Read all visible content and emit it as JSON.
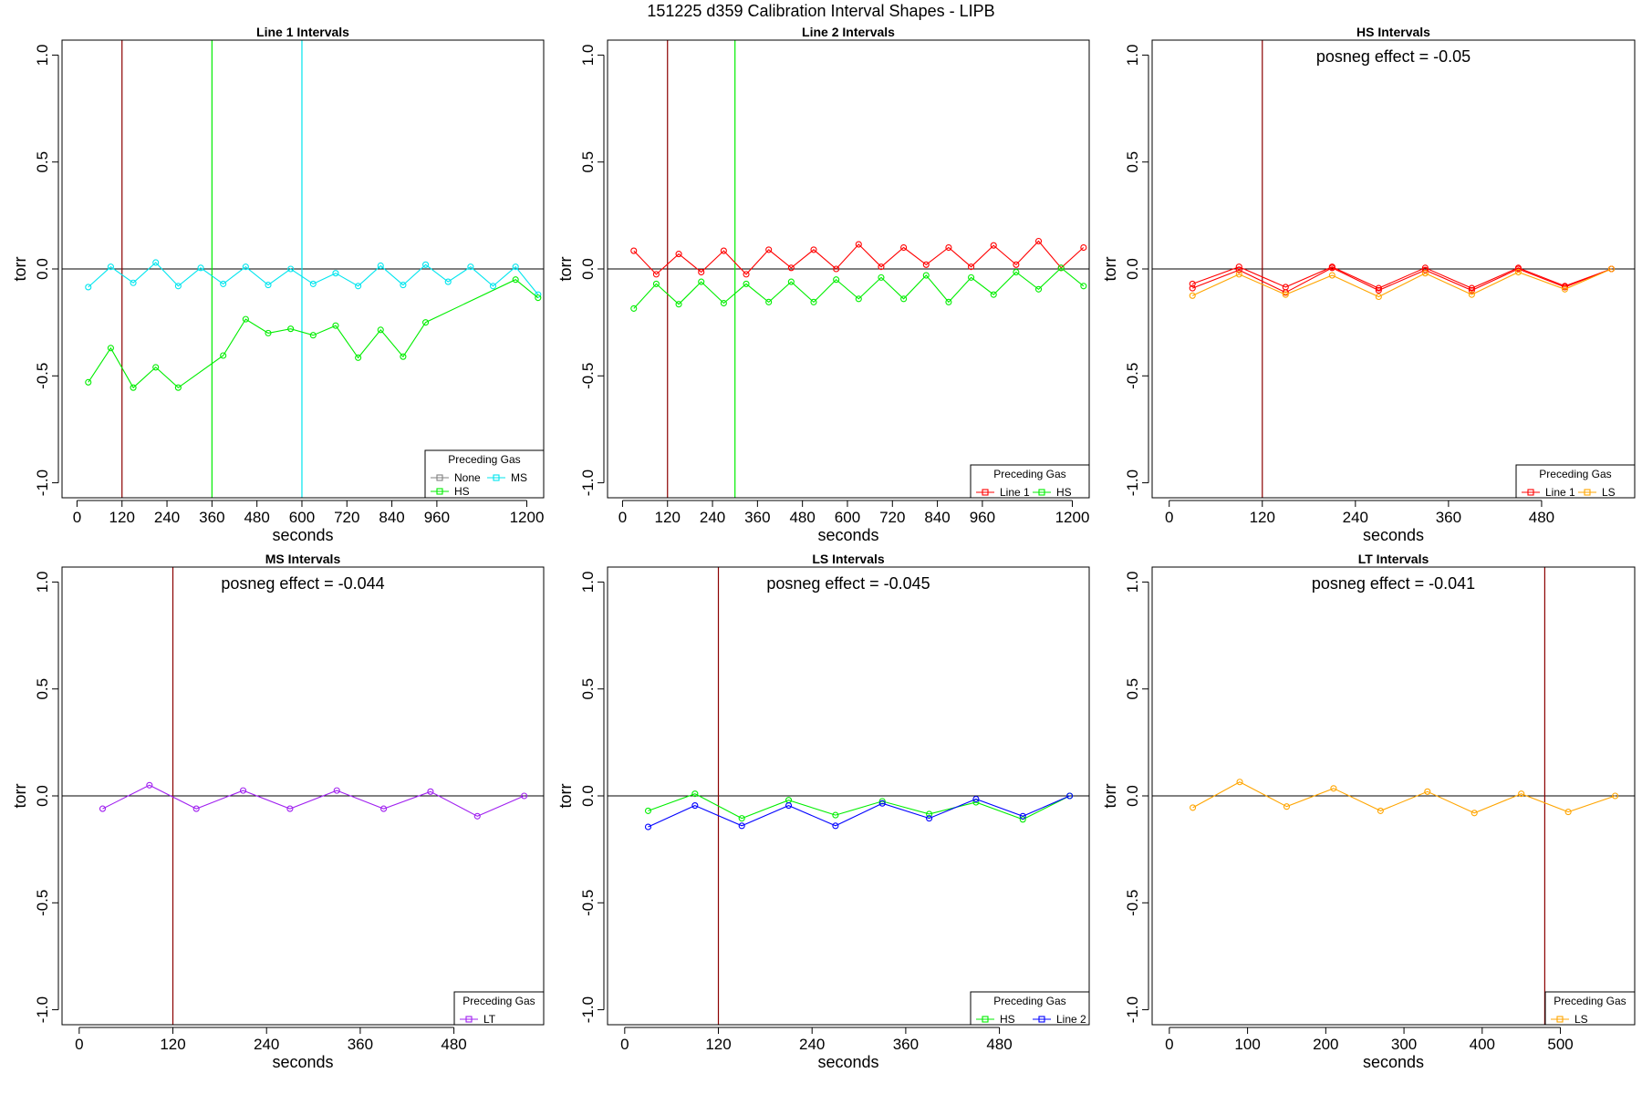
{
  "figure": {
    "title": "151225   d359   Calibration Interval Shapes - LIPB"
  },
  "colors": {
    "Line 1": "#ff0000",
    "Line 2": "#0000ff",
    "HS": "#00ee00",
    "MS": "#00e5ee",
    "LS": "#ffa500",
    "LT": "#a020f0",
    "None": "#808080",
    "vline_dark": "#8b0000",
    "axis": "#000000"
  },
  "chart_data": [
    {
      "id": "line1",
      "type": "line",
      "title": "Line 1 Intervals",
      "xlabel": "seconds",
      "ylabel": "torr",
      "xlim": [
        -40,
        1245
      ],
      "ylim": [
        -1.07,
        1.07
      ],
      "xticks": [
        0,
        120,
        240,
        360,
        480,
        600,
        720,
        840,
        960,
        1200
      ],
      "yticks": [
        -1.0,
        -0.5,
        0.0,
        0.5,
        1.0
      ],
      "ytick_labels": [
        "-1.0",
        "-0.5",
        "0.0",
        "0.5",
        "1.0"
      ],
      "hline": 0,
      "vlines": [
        {
          "x": 120,
          "color_key": "vline_dark"
        },
        {
          "x": 360,
          "color_key": "HS"
        },
        {
          "x": 600,
          "color_key": "MS"
        }
      ],
      "legend": {
        "title": "Preceding Gas",
        "position": "bottom-right",
        "entries": [
          "None",
          "MS",
          "HS"
        ],
        "columns": 2
      },
      "series": [
        {
          "name": "MS",
          "color_key": "MS",
          "x": [
            30,
            90,
            150,
            210,
            270,
            330,
            390,
            450,
            510,
            570,
            630,
            690,
            750,
            810,
            870,
            930,
            990,
            1050,
            1110,
            1170,
            1230
          ],
          "y": [
            -0.085,
            0.01,
            -0.065,
            0.03,
            -0.08,
            0.005,
            -0.07,
            0.01,
            -0.075,
            0.0,
            -0.07,
            -0.02,
            -0.08,
            0.015,
            -0.075,
            0.02,
            -0.06,
            0.01,
            -0.08,
            0.01,
            -0.12
          ]
        },
        {
          "name": "HS",
          "color_key": "HS",
          "x": [
            30,
            90,
            150,
            210,
            270,
            390,
            450,
            510,
            570,
            630,
            690,
            750,
            810,
            870,
            930,
            1170,
            1230
          ],
          "y": [
            -0.53,
            -0.37,
            -0.555,
            -0.46,
            -0.555,
            -0.405,
            -0.235,
            -0.3,
            -0.28,
            -0.31,
            -0.265,
            -0.415,
            -0.285,
            -0.41,
            -0.25,
            -0.05,
            -0.135
          ]
        }
      ]
    },
    {
      "id": "line2",
      "type": "line",
      "title": "Line 2 Intervals",
      "xlabel": "seconds",
      "ylabel": "torr",
      "xlim": [
        -40,
        1245
      ],
      "ylim": [
        -1.07,
        1.07
      ],
      "xticks": [
        0,
        120,
        240,
        360,
        480,
        600,
        720,
        840,
        960,
        1200
      ],
      "yticks": [
        -1.0,
        -0.5,
        0.0,
        0.5,
        1.0
      ],
      "ytick_labels": [
        "-1.0",
        "-0.5",
        "0.0",
        "0.5",
        "1.0"
      ],
      "hline": 0,
      "vlines": [
        {
          "x": 120,
          "color_key": "vline_dark"
        },
        {
          "x": 300,
          "color_key": "HS"
        }
      ],
      "legend": {
        "title": "Preceding Gas",
        "position": "bottom-right",
        "entries": [
          "Line 1",
          "HS"
        ],
        "columns": 2
      },
      "series": [
        {
          "name": "Line 1",
          "color_key": "Line 1",
          "x": [
            30,
            90,
            150,
            210,
            270,
            330,
            390,
            450,
            510,
            570,
            630,
            690,
            750,
            810,
            870,
            930,
            990,
            1050,
            1110,
            1170,
            1230
          ],
          "y": [
            0.085,
            -0.025,
            0.07,
            -0.015,
            0.085,
            -0.025,
            0.09,
            0.005,
            0.09,
            0.0,
            0.115,
            0.01,
            0.1,
            0.02,
            0.1,
            0.01,
            0.11,
            0.02,
            0.13,
            0.005,
            0.1
          ]
        },
        {
          "name": "HS",
          "color_key": "HS",
          "x": [
            30,
            90,
            150,
            210,
            270,
            330,
            390,
            450,
            510,
            570,
            630,
            690,
            750,
            810,
            870,
            930,
            990,
            1050,
            1110,
            1170,
            1230
          ],
          "y": [
            -0.185,
            -0.07,
            -0.165,
            -0.06,
            -0.16,
            -0.07,
            -0.155,
            -0.06,
            -0.155,
            -0.05,
            -0.14,
            -0.04,
            -0.14,
            -0.03,
            -0.155,
            -0.04,
            -0.12,
            -0.015,
            -0.095,
            0.005,
            -0.08
          ]
        }
      ]
    },
    {
      "id": "hs",
      "type": "line",
      "title": "HS Intervals",
      "xlabel": "seconds",
      "ylabel": "torr",
      "annotation": "posneg effect = -0.05",
      "xlim": [
        -22,
        600
      ],
      "ylim": [
        -1.07,
        1.07
      ],
      "xticks": [
        0,
        120,
        240,
        360,
        480
      ],
      "yticks": [
        -1.0,
        -0.5,
        0.0,
        0.5,
        1.0
      ],
      "ytick_labels": [
        "-1.0",
        "-0.5",
        "0.0",
        "0.5",
        "1.0"
      ],
      "hline": 0,
      "vlines": [
        {
          "x": 120,
          "color_key": "vline_dark"
        }
      ],
      "legend": {
        "title": "Preceding Gas",
        "position": "bottom-right",
        "entries": [
          "Line 1",
          "LS"
        ],
        "columns": 2
      },
      "series": [
        {
          "name": "Line 1 (a)",
          "color_key": "Line 1",
          "x": [
            30,
            90,
            150,
            210,
            270,
            330,
            390,
            450,
            510,
            570
          ],
          "y": [
            -0.07,
            0.01,
            -0.085,
            0.01,
            -0.09,
            0.005,
            -0.09,
            0.005,
            -0.08,
            0.0
          ]
        },
        {
          "name": "Line 1 (b)",
          "color_key": "Line 1",
          "x": [
            30,
            90,
            150,
            210,
            270,
            330,
            390,
            450,
            510,
            570
          ],
          "y": [
            -0.09,
            -0.005,
            -0.11,
            0.005,
            -0.1,
            -0.005,
            -0.1,
            0.0,
            -0.085,
            0.0
          ]
        },
        {
          "name": "LS",
          "color_key": "LS",
          "x": [
            30,
            90,
            150,
            210,
            270,
            330,
            390,
            450,
            510,
            570
          ],
          "y": [
            -0.125,
            -0.025,
            -0.12,
            -0.03,
            -0.13,
            -0.02,
            -0.12,
            -0.015,
            -0.095,
            0.0
          ]
        }
      ]
    },
    {
      "id": "ms",
      "type": "line",
      "title": "MS Intervals",
      "xlabel": "seconds",
      "ylabel": "torr",
      "annotation": "posneg effect = -0.044",
      "xlim": [
        -22,
        595
      ],
      "ylim": [
        -1.07,
        1.07
      ],
      "xticks": [
        0,
        120,
        240,
        360,
        480
      ],
      "yticks": [
        -1.0,
        -0.5,
        0.0,
        0.5,
        1.0
      ],
      "ytick_labels": [
        "-1.0",
        "-0.5",
        "0.0",
        "0.5",
        "1.0"
      ],
      "hline": 0,
      "vlines": [
        {
          "x": 120,
          "color_key": "vline_dark"
        }
      ],
      "legend": {
        "title": "Preceding Gas",
        "position": "bottom-right",
        "entries": [
          "LT"
        ],
        "columns": 1
      },
      "series": [
        {
          "name": "LT",
          "color_key": "LT",
          "x": [
            30,
            90,
            150,
            210,
            270,
            330,
            390,
            450,
            510,
            570
          ],
          "y": [
            -0.06,
            0.05,
            -0.06,
            0.025,
            -0.06,
            0.025,
            -0.06,
            0.02,
            -0.095,
            0.0
          ]
        }
      ]
    },
    {
      "id": "ls",
      "type": "line",
      "title": "LS Intervals",
      "xlabel": "seconds",
      "ylabel": "torr",
      "annotation": "posneg effect = -0.045",
      "xlim": [
        -22,
        595
      ],
      "ylim": [
        -1.07,
        1.07
      ],
      "xticks": [
        0,
        120,
        240,
        360,
        480
      ],
      "yticks": [
        -1.0,
        -0.5,
        0.0,
        0.5,
        1.0
      ],
      "ytick_labels": [
        "-1.0",
        "-0.5",
        "0.0",
        "0.5",
        "1.0"
      ],
      "hline": 0,
      "vlines": [
        {
          "x": 120,
          "color_key": "vline_dark"
        }
      ],
      "legend": {
        "title": "Preceding Gas",
        "position": "bottom-right",
        "entries": [
          "HS",
          "Line 2"
        ],
        "columns": 2
      },
      "series": [
        {
          "name": "HS",
          "color_key": "HS",
          "x": [
            30,
            90,
            150,
            210,
            270,
            330,
            390,
            450,
            510,
            570
          ],
          "y": [
            -0.07,
            0.01,
            -0.105,
            -0.02,
            -0.09,
            -0.025,
            -0.085,
            -0.03,
            -0.11,
            0.0
          ]
        },
        {
          "name": "Line 2",
          "color_key": "Line 2",
          "x": [
            30,
            90,
            150,
            210,
            270,
            330,
            390,
            450,
            510,
            570
          ],
          "y": [
            -0.145,
            -0.045,
            -0.14,
            -0.045,
            -0.14,
            -0.035,
            -0.105,
            -0.015,
            -0.095,
            0.0
          ]
        }
      ]
    },
    {
      "id": "lt",
      "type": "line",
      "title": "LT Intervals",
      "xlabel": "seconds",
      "ylabel": "torr",
      "annotation": "posneg effect = -0.041",
      "xlim": [
        -22,
        595
      ],
      "ylim": [
        -1.07,
        1.07
      ],
      "xticks": [
        0,
        100,
        200,
        300,
        400,
        500
      ],
      "yticks": [
        -1.0,
        -0.5,
        0.0,
        0.5,
        1.0
      ],
      "ytick_labels": [
        "-1.0",
        "-0.5",
        "0.0",
        "0.5",
        "1.0"
      ],
      "hline": 0,
      "vlines": [
        {
          "x": 480,
          "color_key": "vline_dark"
        }
      ],
      "legend": {
        "title": "Preceding Gas",
        "position": "bottom-right",
        "entries": [
          "LS"
        ],
        "columns": 1
      },
      "series": [
        {
          "name": "LS",
          "color_key": "LS",
          "x": [
            30,
            90,
            150,
            210,
            270,
            330,
            390,
            450,
            510,
            570
          ],
          "y": [
            -0.055,
            0.065,
            -0.05,
            0.035,
            -0.07,
            0.02,
            -0.08,
            0.01,
            -0.075,
            0.0
          ]
        }
      ]
    }
  ]
}
